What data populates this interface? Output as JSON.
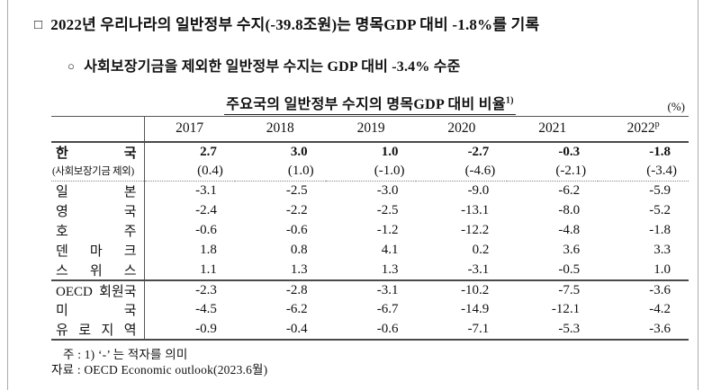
{
  "page": {
    "heading1": {
      "bullet": "□",
      "text": "2022년 우리나라의 일반정부 수지(-39.8조원)는 명목GDP 대비 -1.8%를 기록"
    },
    "heading2": {
      "bullet": "○",
      "text": "사회보장기금을 제외한 일반정부 수지는 GDP 대비 -3.4% 수준"
    }
  },
  "table": {
    "title": "주요국의 일반정부 수지의 명목GDP 대비 비율",
    "title_sup": "1)",
    "unit": "(%)",
    "col_headers": [
      "2017",
      "2018",
      "2019",
      "2020",
      "2021",
      "2022"
    ],
    "col_header_sup": "p",
    "rows": [
      {
        "label": "한 국",
        "values": [
          "2.7",
          "3.0",
          "1.0",
          "-2.7",
          "-0.3",
          "-1.8"
        ]
      },
      {
        "label": "(사회보장기금 제외)",
        "values": [
          "(0.4)",
          "(1.0)",
          "(-1.0)",
          "(-4.6)",
          "(-2.1)",
          "(-3.4)"
        ]
      },
      {
        "label": "일 본",
        "values": [
          "-3.1",
          "-2.5",
          "-3.0",
          "-9.0",
          "-6.2",
          "-5.9"
        ]
      },
      {
        "label": "영 국",
        "values": [
          "-2.4",
          "-2.2",
          "-2.5",
          "-13.1",
          "-8.0",
          "-5.2"
        ]
      },
      {
        "label": "호 주",
        "values": [
          "-0.6",
          "-0.6",
          "-1.2",
          "-12.2",
          "-4.8",
          "-1.8"
        ]
      },
      {
        "label": "덴 마 크",
        "values": [
          "1.8",
          "0.8",
          "4.1",
          "0.2",
          "3.6",
          "3.3"
        ]
      },
      {
        "label": "스 위 스",
        "values": [
          "1.1",
          "1.3",
          "1.3",
          "-3.1",
          "-0.5",
          "1.0"
        ]
      },
      {
        "label": "OECD 회원국",
        "values": [
          "-2.3",
          "-2.8",
          "-3.1",
          "-10.2",
          "-7.5",
          "-3.6"
        ]
      },
      {
        "label": "미 국",
        "values": [
          "-4.5",
          "-6.2",
          "-6.7",
          "-14.9",
          "-12.1",
          "-4.2"
        ]
      },
      {
        "label": "유 로 지 역",
        "values": [
          "-0.9",
          "-0.4",
          "-0.6",
          "-7.1",
          "-5.3",
          "-3.6"
        ]
      }
    ]
  },
  "notes": {
    "note1": "주 : 1) ‘-’ 는 적자를 의미",
    "note2": "자료 : OECD Economic outlook(2023.6월)"
  }
}
